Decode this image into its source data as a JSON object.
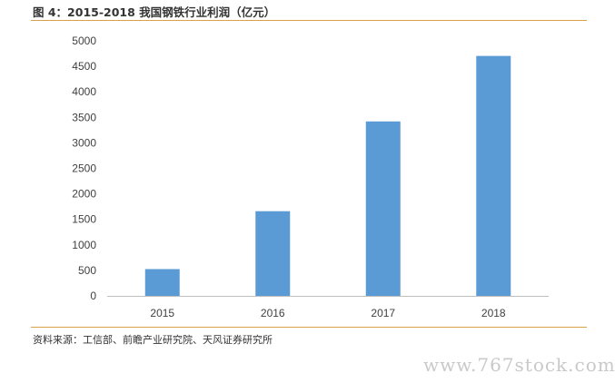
{
  "figure": {
    "title": "图 4：2015-2018 我国钢铁行业利润（亿元）",
    "source": "资料来源：工信部、前瞻产业研究院、天风证券研究所",
    "watermark": "www.767stock.com"
  },
  "chart_data": {
    "type": "bar",
    "categories": [
      "2015",
      "2016",
      "2017",
      "2018"
    ],
    "values": [
      525,
      1660,
      3420,
      4704
    ],
    "ylim": [
      0,
      5000
    ],
    "yticks": [
      "0",
      "500",
      "1000",
      "1500",
      "2000",
      "2500",
      "3000",
      "3500",
      "4000",
      "4500",
      "5000"
    ],
    "grid": false,
    "legend": "none",
    "bar_color": "#5b9bd5",
    "axis_color": "#bfbfbf"
  }
}
